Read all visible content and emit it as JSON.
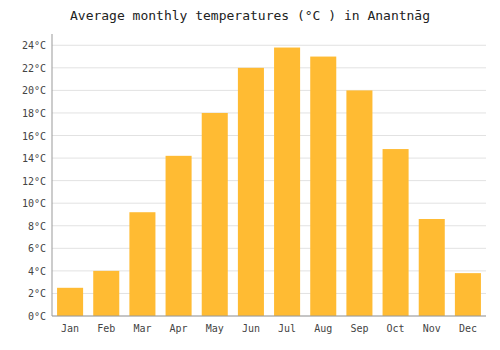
{
  "chart_data": {
    "type": "bar",
    "title": "Average monthly temperatures (°C ) in Anantnāg",
    "categories": [
      "Jan",
      "Feb",
      "Mar",
      "Apr",
      "May",
      "Jun",
      "Jul",
      "Aug",
      "Sep",
      "Oct",
      "Nov",
      "Dec"
    ],
    "values": [
      2.5,
      4.0,
      9.2,
      14.2,
      18.0,
      22.0,
      23.8,
      23.0,
      20.0,
      14.8,
      8.6,
      3.8
    ],
    "color": "#FFBB33",
    "ylim": [
      0,
      25
    ],
    "yticks": [
      {
        "value": 0,
        "label": "0°C"
      },
      {
        "value": 2,
        "label": "2°C"
      },
      {
        "value": 4,
        "label": "4°C"
      },
      {
        "value": 6,
        "label": "6°C"
      },
      {
        "value": 8,
        "label": "8°C"
      },
      {
        "value": 10,
        "label": "10°C"
      },
      {
        "value": 12,
        "label": "12°C"
      },
      {
        "value": 14,
        "label": "14°C"
      },
      {
        "value": 16,
        "label": "16°C"
      },
      {
        "value": 18,
        "label": "18°C"
      },
      {
        "value": 20,
        "label": "20°C"
      },
      {
        "value": 22,
        "label": "22°C"
      },
      {
        "value": 24,
        "label": "24°C"
      }
    ],
    "grid": true
  }
}
